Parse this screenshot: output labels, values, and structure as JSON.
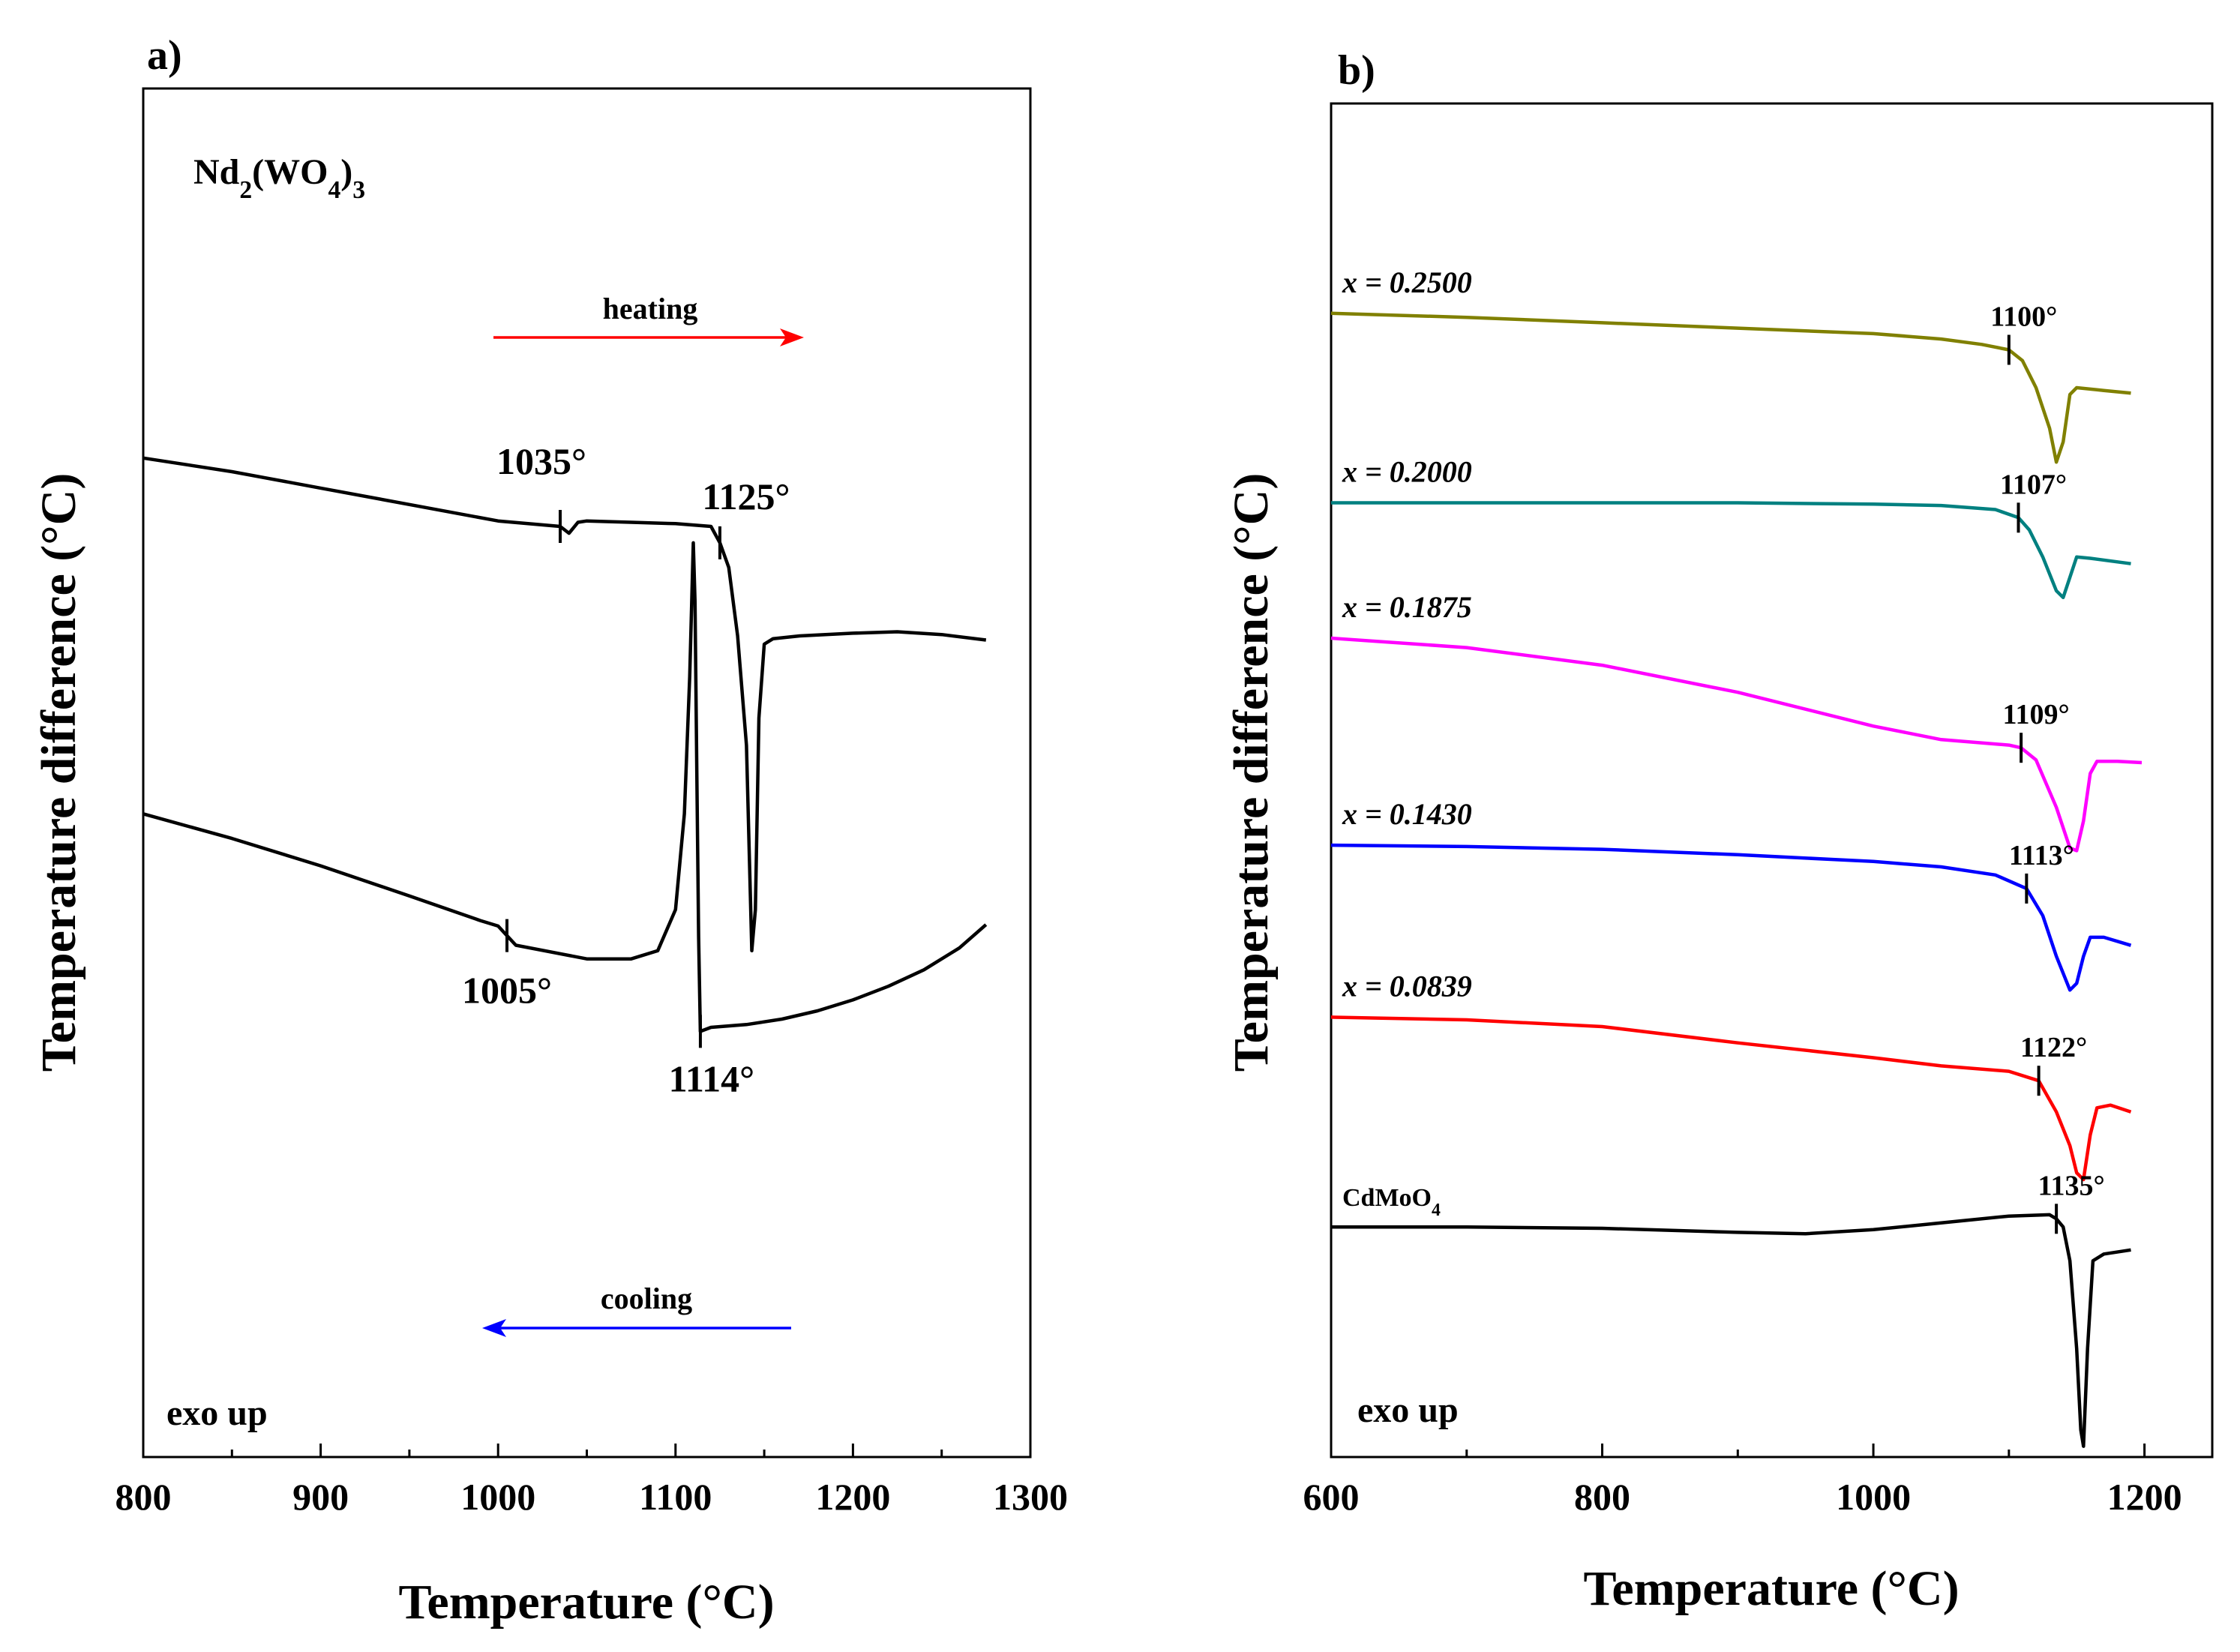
{
  "figure": {
    "panels": [
      {
        "id": "a",
        "panel_label": "a)",
        "xlabel": "Temperature  (°C)",
        "ylabel": "Temperature difference  (°C)",
        "sample_label": "Nd2(WO4)3",
        "heating_label": "heating",
        "cooling_label": "cooling",
        "exo_label": "exo up",
        "xticks": [
          "800",
          "900",
          "1000",
          "1100",
          "1200",
          "1300"
        ]
      },
      {
        "id": "b",
        "panel_label": "b)",
        "xlabel": "Temperature  (°C)",
        "ylabel": "Temperature difference  (°C)",
        "exo_label": "exo up",
        "xticks": [
          "600",
          "800",
          "1000",
          "1200"
        ]
      }
    ]
  },
  "chart_data": [
    {
      "type": "line",
      "panel": "a",
      "xlim": [
        800,
        1300
      ],
      "xticks": [
        800,
        900,
        1000,
        1100,
        1200,
        1300
      ],
      "yaxis": "arbitrary (no tick labels)",
      "grid": false,
      "colors": {
        "curves": "#000000",
        "heating_arrow": "#ff0000",
        "cooling_arrow": "#0000ff"
      },
      "series": [
        {
          "name": "heating",
          "x": [
            800,
            850,
            900,
            950,
            1000,
            1035,
            1040,
            1045,
            1050,
            1075,
            1100,
            1120,
            1125,
            1130,
            1135,
            1140,
            1143,
            1145,
            1147,
            1150,
            1155,
            1170,
            1200,
            1225,
            1250,
            1275
          ],
          "y": [
            0.73,
            0.72,
            0.708,
            0.696,
            0.684,
            0.68,
            0.675,
            0.683,
            0.684,
            0.683,
            0.682,
            0.68,
            0.668,
            0.65,
            0.6,
            0.52,
            0.37,
            0.4,
            0.54,
            0.594,
            0.598,
            0.6,
            0.602,
            0.603,
            0.601,
            0.597
          ]
        },
        {
          "name": "cooling",
          "x": [
            800,
            850,
            900,
            950,
            990,
            1000,
            1005,
            1010,
            1050,
            1075,
            1090,
            1100,
            1105,
            1108,
            1110,
            1111,
            1112,
            1113,
            1114,
            1120,
            1140,
            1160,
            1180,
            1200,
            1220,
            1240,
            1260,
            1275
          ],
          "y": [
            0.47,
            0.452,
            0.432,
            0.41,
            0.392,
            0.388,
            0.381,
            0.374,
            0.364,
            0.364,
            0.37,
            0.4,
            0.47,
            0.57,
            0.668,
            0.625,
            0.5,
            0.38,
            0.311,
            0.314,
            0.316,
            0.32,
            0.326,
            0.334,
            0.344,
            0.356,
            0.372,
            0.389
          ]
        }
      ],
      "annotations": [
        {
          "x": 1035,
          "series": "heating",
          "label": "1035°"
        },
        {
          "x": 1125,
          "series": "heating",
          "label": "1125°"
        },
        {
          "x": 1005,
          "series": "cooling",
          "label": "1005°"
        },
        {
          "x": 1114,
          "series": "cooling",
          "label": "1114°"
        }
      ],
      "text": {
        "sample": "Nd2(WO4)3",
        "heating": "heating",
        "cooling": "cooling",
        "exo": "exo up"
      }
    },
    {
      "type": "line",
      "panel": "b",
      "xlim": [
        600,
        1250
      ],
      "xticks": [
        600,
        800,
        1000,
        1200
      ],
      "yaxis": "arbitrary (curves offset vertically, no tick labels)",
      "grid": false,
      "series": [
        {
          "name": "x = 0.2500",
          "color": "#808000",
          "onset_label": "1100°",
          "onset_x": 1100,
          "x": [
            600,
            700,
            800,
            900,
            1000,
            1050,
            1080,
            1100,
            1110,
            1120,
            1130,
            1135,
            1140,
            1145,
            1150,
            1170,
            1190
          ],
          "y": [
            0.845,
            0.842,
            0.838,
            0.834,
            0.83,
            0.826,
            0.822,
            0.818,
            0.81,
            0.79,
            0.76,
            0.735,
            0.75,
            0.785,
            0.79,
            0.788,
            0.786
          ]
        },
        {
          "name": "x = 0.2000",
          "color": "#008080",
          "onset_label": "1107°",
          "onset_x": 1107,
          "x": [
            600,
            700,
            800,
            900,
            1000,
            1050,
            1090,
            1107,
            1115,
            1125,
            1135,
            1140,
            1145,
            1150,
            1160,
            1190
          ],
          "y": [
            0.705,
            0.705,
            0.705,
            0.705,
            0.704,
            0.703,
            0.7,
            0.694,
            0.685,
            0.665,
            0.64,
            0.635,
            0.65,
            0.665,
            0.664,
            0.66
          ]
        },
        {
          "name": "x = 0.1875",
          "color": "#ff00ff",
          "onset_label": "1109°",
          "onset_x": 1109,
          "x": [
            600,
            700,
            800,
            900,
            1000,
            1050,
            1100,
            1109,
            1120,
            1135,
            1145,
            1150,
            1155,
            1160,
            1165,
            1180,
            1198
          ],
          "y": [
            0.605,
            0.598,
            0.585,
            0.565,
            0.54,
            0.53,
            0.526,
            0.524,
            0.515,
            0.48,
            0.45,
            0.448,
            0.47,
            0.505,
            0.514,
            0.514,
            0.513
          ]
        },
        {
          "name": "x = 0.1430",
          "color": "#0000ff",
          "onset_label": "1113°",
          "onset_x": 1113,
          "x": [
            600,
            700,
            800,
            900,
            1000,
            1050,
            1090,
            1113,
            1125,
            1135,
            1145,
            1150,
            1155,
            1160,
            1170,
            1190
          ],
          "y": [
            0.452,
            0.451,
            0.449,
            0.445,
            0.44,
            0.436,
            0.43,
            0.42,
            0.4,
            0.37,
            0.345,
            0.35,
            0.37,
            0.384,
            0.384,
            0.378
          ]
        },
        {
          "name": "x = 0.0839",
          "color": "#ff0000",
          "onset_label": "1122°",
          "onset_x": 1122,
          "x": [
            600,
            700,
            800,
            900,
            1000,
            1050,
            1100,
            1122,
            1135,
            1145,
            1150,
            1155,
            1160,
            1165,
            1175,
            1190
          ],
          "y": [
            0.325,
            0.323,
            0.318,
            0.306,
            0.295,
            0.289,
            0.285,
            0.278,
            0.255,
            0.23,
            0.21,
            0.205,
            0.238,
            0.258,
            0.26,
            0.255
          ]
        },
        {
          "name": "CdMoO4",
          "color": "#000000",
          "onset_label": "1135°",
          "onset_x": 1135,
          "x": [
            600,
            700,
            800,
            900,
            950,
            1000,
            1050,
            1100,
            1130,
            1135,
            1140,
            1145,
            1150,
            1153,
            1155,
            1158,
            1162,
            1170,
            1190
          ],
          "y": [
            0.17,
            0.17,
            0.169,
            0.166,
            0.165,
            0.168,
            0.173,
            0.178,
            0.179,
            0.176,
            0.17,
            0.145,
            0.08,
            0.02,
            0.008,
            0.08,
            0.145,
            0.15,
            0.153
          ]
        }
      ],
      "text": {
        "exo": "exo up"
      }
    }
  ]
}
